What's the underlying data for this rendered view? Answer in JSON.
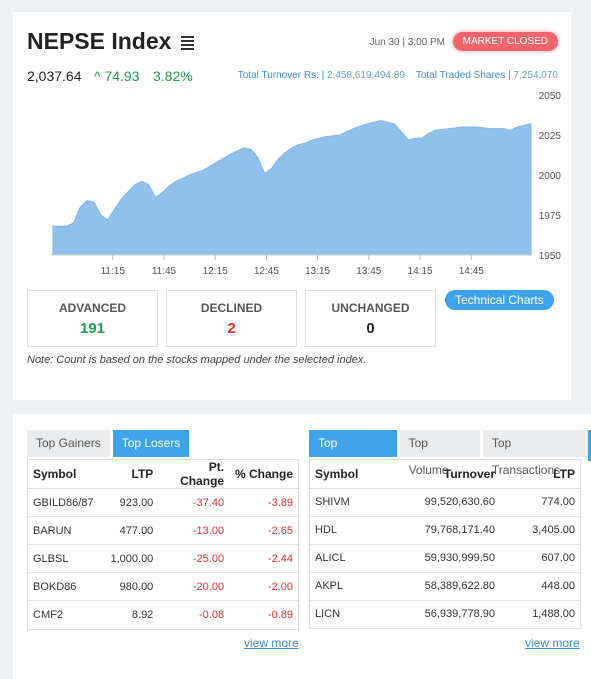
{
  "header": {
    "title": "NEPSE Index",
    "datetime": "Jun 30 | 3:00 PM",
    "market_status": "MARKET CLOSED"
  },
  "index": {
    "value": "2,037.64",
    "change": "74.93",
    "percent": "3.82%"
  },
  "turnover": {
    "label": "Total Turnover Rs: |",
    "value": "2,458,619,494.89",
    "shares_label": "Total Traded Shares |",
    "shares_value": "7,254,070"
  },
  "chart_data": {
    "type": "area",
    "title": "",
    "xlabel": "",
    "ylabel": "",
    "x_ticks": [
      "11:15",
      "11:45",
      "12:15",
      "12:45",
      "13:15",
      "13:45",
      "14:15",
      "14:45"
    ],
    "y_ticks": [
      2050,
      2025,
      2000,
      1975,
      1950
    ],
    "ylim": [
      1950,
      2050
    ],
    "grid": false,
    "color": "#8fc1ec",
    "x_minutes": [
      0,
      8,
      12,
      16,
      20,
      24,
      28,
      32,
      40,
      48,
      52,
      56,
      60,
      64,
      68,
      72,
      80,
      88,
      96,
      104,
      112,
      116,
      120,
      124,
      128,
      132,
      136,
      140,
      144,
      148,
      152,
      160,
      168,
      176,
      184,
      192,
      200,
      204,
      208,
      212,
      216,
      220,
      224,
      232,
      240,
      248,
      256,
      264,
      268,
      272,
      276,
      280
    ],
    "values": [
      1968,
      1968,
      1970,
      1980,
      1984,
      1983,
      1975,
      1972,
      1985,
      1994,
      1996,
      1994,
      1986,
      1989,
      1993,
      1996,
      2000,
      2003,
      2008,
      2013,
      2017,
      2016,
      2011,
      2001,
      2004,
      2010,
      2014,
      2017,
      2019,
      2020,
      2022,
      2024,
      2025,
      2029,
      2032,
      2034,
      2032,
      2027,
      2022,
      2023,
      2023,
      2026,
      2028,
      2029,
      2030,
      2030,
      2029,
      2029,
      2028,
      2030,
      2031,
      2032
    ]
  },
  "stats": {
    "advanced_label": "ADVANCED",
    "advanced_value": "191",
    "declined_label": "DECLINED",
    "declined_value": "2",
    "unchanged_label": "UNCHANGED",
    "unchanged_value": "0"
  },
  "tech_charts_label": "Technical Charts",
  "note": "Note: Count is based on the stocks mapped under the selected index.",
  "left_tabs": [
    "Top Gainers",
    "Top Losers"
  ],
  "left_table": {
    "headers": [
      "Symbol",
      "LTP",
      "Pt. Change",
      "% Change"
    ],
    "rows": [
      [
        "GBILD86/87",
        "923.00",
        "-37.40",
        "-3.89"
      ],
      [
        "BARUN",
        "477.00",
        "-13.00",
        "-2.65"
      ],
      [
        "GLBSL",
        "1,000.00",
        "-25.00",
        "-2.44"
      ],
      [
        "BOKD86",
        "980.00",
        "-20.00",
        "-2.00"
      ],
      [
        "CMF2",
        "8.92",
        "-0.08",
        "-0.89"
      ]
    ]
  },
  "right_tabs": [
    "Top Turnover",
    "Top Volume",
    "Top Transactions"
  ],
  "right_table": {
    "headers": [
      "Symbol",
      "Turnover",
      "LTP"
    ],
    "rows": [
      [
        "SHIVM",
        "99,520,630.60",
        "774.00"
      ],
      [
        "HDL",
        "79,768,171.40",
        "3,405.00"
      ],
      [
        "ALICL",
        "59,930,999.50",
        "607.00"
      ],
      [
        "AKPL",
        "58,389,622.80",
        "448.00"
      ],
      [
        "LICN",
        "56,939,778.90",
        "1,488.00"
      ]
    ]
  },
  "view_more": "view more"
}
